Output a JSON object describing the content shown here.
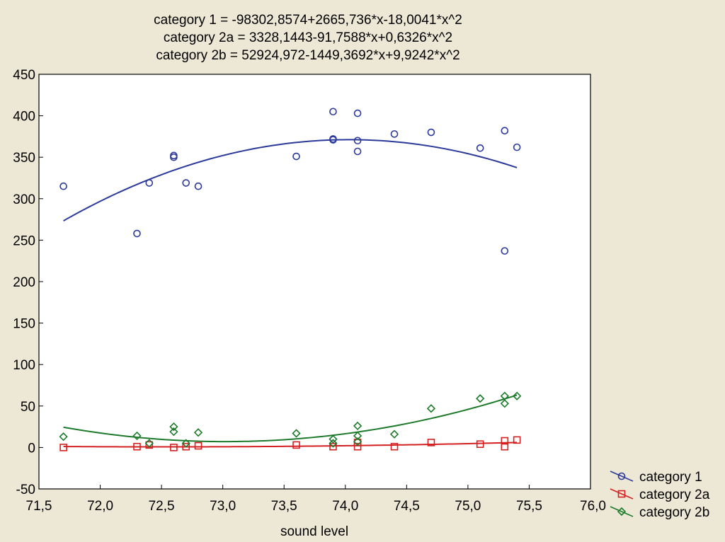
{
  "chart_data": {
    "type": "scatter",
    "title_lines": [
      "category 1 = -98302,8574+2665,736*x-18,0041*x^2",
      "category 2a = 3328,1443-91,7588*x+0,6326*x^2",
      "category 2b = 52924,972-1449,3692*x+9,9242*x^2"
    ],
    "xlabel": "sound level",
    "ylabel": "",
    "xlim": [
      71.5,
      76.0
    ],
    "ylim": [
      -50,
      450
    ],
    "x_ticks": [
      "71,5",
      "72,0",
      "72,5",
      "73,0",
      "73,5",
      "74,0",
      "74,5",
      "75,0",
      "75,5",
      "76,0"
    ],
    "y_ticks": [
      "450",
      "400",
      "350",
      "300",
      "250",
      "200",
      "150",
      "100",
      "50",
      "0",
      "-50"
    ],
    "grid": false,
    "legend_position": "bottom-right outside",
    "series": [
      {
        "name": "category 1",
        "marker": "circle",
        "color": "#2b3a9a",
        "fit": {
          "coeffs": [
            -98302.8574,
            2665.736,
            -18.0041
          ],
          "x_range": [
            71.7,
            75.4
          ]
        },
        "points": [
          [
            71.7,
            315
          ],
          [
            72.3,
            258
          ],
          [
            72.4,
            319
          ],
          [
            72.6,
            350
          ],
          [
            72.6,
            352
          ],
          [
            72.7,
            319
          ],
          [
            72.8,
            315
          ],
          [
            73.6,
            351
          ],
          [
            73.9,
            405
          ],
          [
            73.9,
            371
          ],
          [
            73.9,
            372
          ],
          [
            74.1,
            403
          ],
          [
            74.1,
            370
          ],
          [
            74.1,
            357
          ],
          [
            74.4,
            378
          ],
          [
            74.7,
            380
          ],
          [
            75.1,
            361
          ],
          [
            75.3,
            382
          ],
          [
            75.3,
            237
          ],
          [
            75.4,
            362
          ]
        ]
      },
      {
        "name": "category 2a",
        "marker": "square",
        "color": "#d42020",
        "fit": {
          "coeffs": [
            3328.1443,
            -91.7588,
            0.6326
          ],
          "x_range": [
            71.7,
            75.4
          ]
        },
        "points": [
          [
            71.7,
            0
          ],
          [
            72.3,
            1
          ],
          [
            72.4,
            3
          ],
          [
            72.6,
            0
          ],
          [
            72.7,
            1
          ],
          [
            72.8,
            2
          ],
          [
            73.6,
            3
          ],
          [
            73.9,
            1
          ],
          [
            74.1,
            1
          ],
          [
            74.1,
            6
          ],
          [
            74.4,
            1
          ],
          [
            74.7,
            6
          ],
          [
            75.1,
            4
          ],
          [
            75.3,
            1
          ],
          [
            75.3,
            8
          ],
          [
            75.4,
            9
          ]
        ]
      },
      {
        "name": "category 2b",
        "marker": "diamond",
        "color": "#1c7a2a",
        "fit": {
          "coeffs": [
            52924.972,
            -1449.3692,
            9.9242
          ],
          "x_range": [
            71.7,
            75.4
          ]
        },
        "points": [
          [
            71.7,
            13
          ],
          [
            72.3,
            14
          ],
          [
            72.4,
            5
          ],
          [
            72.6,
            25
          ],
          [
            72.6,
            19
          ],
          [
            72.7,
            5
          ],
          [
            72.8,
            18
          ],
          [
            73.6,
            17
          ],
          [
            73.9,
            10
          ],
          [
            73.9,
            5
          ],
          [
            74.1,
            26
          ],
          [
            74.1,
            14
          ],
          [
            74.1,
            7
          ],
          [
            74.4,
            16
          ],
          [
            74.7,
            47
          ],
          [
            75.1,
            59
          ],
          [
            75.3,
            62
          ],
          [
            75.3,
            53
          ],
          [
            75.4,
            62
          ]
        ]
      }
    ]
  }
}
